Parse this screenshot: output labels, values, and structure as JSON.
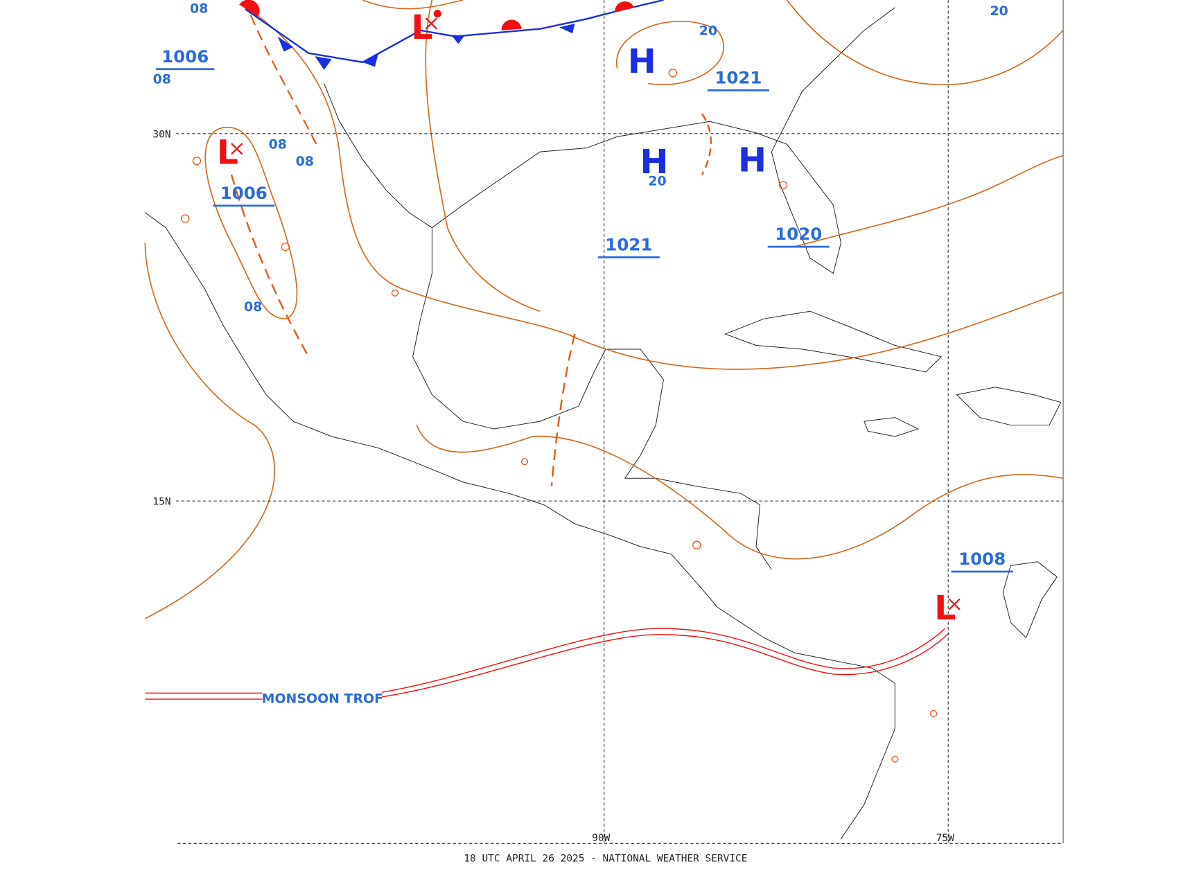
{
  "map": {
    "footer": "18 UTC APRIL 26 2025 - NATIONAL WEATHER SERVICE",
    "latitudes": [
      {
        "label": "30N"
      },
      {
        "label": "15N"
      }
    ],
    "longitudes": [
      {
        "label": "90W"
      },
      {
        "label": "75W"
      }
    ],
    "centers": [
      {
        "symbol": "L",
        "pressure": "1006"
      },
      {
        "symbol": "L"
      },
      {
        "symbol": "L",
        "pressure": "1008"
      },
      {
        "symbol": "H",
        "pressure": "1021"
      },
      {
        "symbol": "H",
        "pressure": "1021"
      },
      {
        "symbol": "H",
        "pressure": "1020"
      }
    ],
    "isobar_labels": [
      "1006",
      "08",
      "08",
      "08",
      "08",
      "08",
      "20",
      "20",
      "20"
    ],
    "trough_label": "MONSOON TROF"
  }
}
